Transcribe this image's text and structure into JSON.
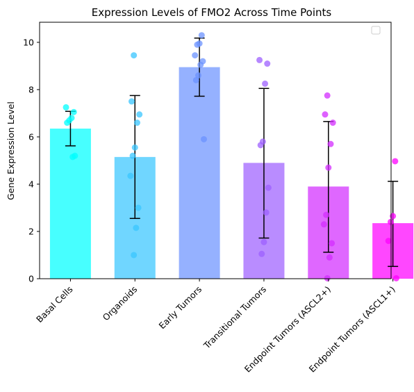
{
  "chart_data": {
    "type": "bar",
    "title": "Expression Levels of FMO2 Across Time Points",
    "xlabel": "",
    "ylabel": "Gene Expression Level",
    "ylim": [
      0,
      10.85
    ],
    "yticks": [
      0,
      2,
      4,
      6,
      8,
      10
    ],
    "grid": false,
    "legend": "upper right, empty",
    "categories": [
      "Basal Cells",
      "Organoids",
      "Early Tumors",
      "Transitional Tumors",
      "Endpoint Tumors (ASCL2+)",
      "Endpoint Tumors (ASCL1+)"
    ],
    "bars": [
      {
        "mean": 6.35,
        "error_low": 5.62,
        "error_high": 7.08,
        "color": "#00ffff",
        "points": [
          7.25,
          7.05,
          6.8,
          6.7,
          6.6,
          5.2,
          5.15
        ]
      },
      {
        "mean": 5.15,
        "error_low": 2.55,
        "error_high": 7.75,
        "color": "#39c6ff",
        "points": [
          9.45,
          7.5,
          6.95,
          6.6,
          5.55,
          5.2,
          4.35,
          3.0,
          2.15,
          1.0
        ]
      },
      {
        "mean": 8.95,
        "error_low": 7.72,
        "error_high": 10.18,
        "color": "#6c93ff",
        "points": [
          10.3,
          9.95,
          9.9,
          9.45,
          9.2,
          9.05,
          8.6,
          8.4,
          5.9
        ]
      },
      {
        "mean": 4.9,
        "error_low": 1.72,
        "error_high": 8.05,
        "color": "#9e60ff",
        "points": [
          9.25,
          9.1,
          8.25,
          5.8,
          5.65,
          3.85,
          2.8,
          1.55,
          1.05
        ]
      },
      {
        "mean": 3.9,
        "error_low": 1.12,
        "error_high": 6.65,
        "color": "#d32cff",
        "points": [
          7.75,
          6.95,
          6.6,
          5.7,
          4.7,
          2.7,
          2.3,
          1.5,
          0.9,
          0.02
        ]
      },
      {
        "mean": 2.35,
        "error_low": 0.52,
        "error_high": 4.12,
        "color": "#ff00ff",
        "points": [
          4.97,
          2.65,
          2.4,
          1.6,
          0.02
        ]
      }
    ]
  }
}
